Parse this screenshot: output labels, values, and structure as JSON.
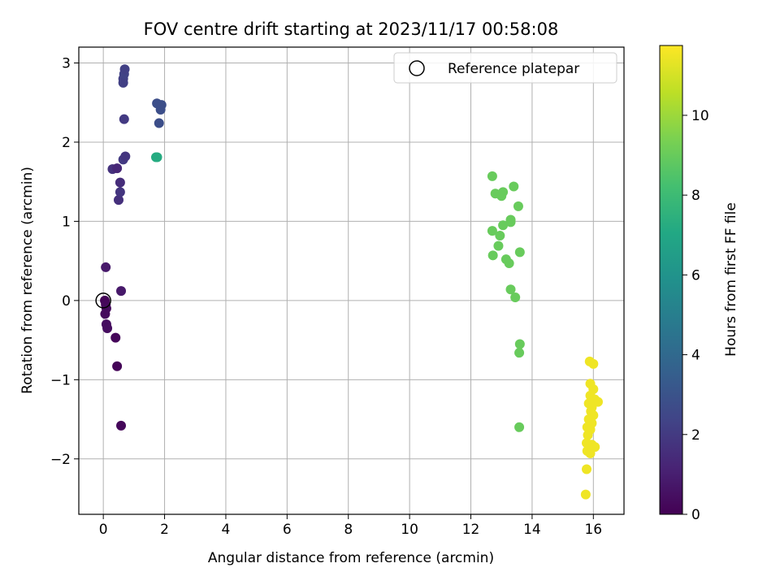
{
  "chart_data": {
    "type": "scatter",
    "title": "FOV centre drift starting at 2023/11/17 00:58:08",
    "xlabel": "Angular distance from reference (arcmin)",
    "ylabel": "Rotation from reference (arcmin)",
    "xlim": [
      -0.8,
      17
    ],
    "ylim": [
      -2.7,
      3.2
    ],
    "xticks": [
      0,
      2,
      4,
      6,
      8,
      10,
      12,
      14,
      16
    ],
    "yticks": [
      -2,
      -1,
      0,
      1,
      2,
      3
    ],
    "xtick_labels": [
      "0",
      "2",
      "4",
      "6",
      "8",
      "10",
      "12",
      "14",
      "16"
    ],
    "ytick_labels": [
      "−2",
      "−1",
      "0",
      "1",
      "2",
      "3"
    ],
    "grid": true,
    "legend": {
      "position": "top-right",
      "entries": [
        "Reference platepar"
      ]
    },
    "reference_point": {
      "x": 0,
      "y": 0,
      "style": "open-circle",
      "color": "#000000"
    },
    "colorbar": {
      "label": "Hours from first FF file",
      "colormap": "viridis",
      "range": [
        0,
        11.75
      ],
      "ticks": [
        0,
        2,
        4,
        6,
        8,
        10
      ],
      "tick_labels": [
        "0",
        "2",
        "4",
        "6",
        "8",
        "10"
      ]
    },
    "points": [
      {
        "x": 0.05,
        "y": 0.0,
        "c": 0.1
      },
      {
        "x": 0.08,
        "y": -0.05,
        "c": 0.2
      },
      {
        "x": 0.1,
        "y": -0.1,
        "c": 0.3
      },
      {
        "x": 0.06,
        "y": -0.17,
        "c": 0.3
      },
      {
        "x": 0.1,
        "y": -0.3,
        "c": 0.4
      },
      {
        "x": 0.13,
        "y": -0.35,
        "c": 0.4
      },
      {
        "x": 0.4,
        "y": -0.47,
        "c": 0.2
      },
      {
        "x": 0.45,
        "y": -0.83,
        "c": 0.1
      },
      {
        "x": 0.58,
        "y": -1.58,
        "c": 0.2
      },
      {
        "x": 0.08,
        "y": 0.42,
        "c": 0.8
      },
      {
        "x": 0.58,
        "y": 0.12,
        "c": 0.8
      },
      {
        "x": 0.5,
        "y": 1.27,
        "c": 1.6
      },
      {
        "x": 0.55,
        "y": 1.37,
        "c": 1.8
      },
      {
        "x": 0.55,
        "y": 1.49,
        "c": 1.5
      },
      {
        "x": 0.3,
        "y": 1.66,
        "c": 1.7
      },
      {
        "x": 0.45,
        "y": 1.67,
        "c": 1.3
      },
      {
        "x": 0.65,
        "y": 1.78,
        "c": 2.0
      },
      {
        "x": 0.72,
        "y": 1.82,
        "c": 1.8
      },
      {
        "x": 0.68,
        "y": 2.29,
        "c": 2.0
      },
      {
        "x": 0.65,
        "y": 2.75,
        "c": 2.2
      },
      {
        "x": 0.65,
        "y": 2.8,
        "c": 2.2
      },
      {
        "x": 0.68,
        "y": 2.86,
        "c": 2.3
      },
      {
        "x": 0.7,
        "y": 2.92,
        "c": 2.2
      },
      {
        "x": 1.75,
        "y": 2.49,
        "c": 2.8
      },
      {
        "x": 1.9,
        "y": 2.47,
        "c": 2.8
      },
      {
        "x": 1.87,
        "y": 2.41,
        "c": 2.8
      },
      {
        "x": 1.82,
        "y": 2.24,
        "c": 2.8
      },
      {
        "x": 1.72,
        "y": 1.81,
        "c": 7.2
      },
      {
        "x": 1.76,
        "y": 1.81,
        "c": 7.2
      },
      {
        "x": 12.7,
        "y": 1.57,
        "c": 9.0
      },
      {
        "x": 13.4,
        "y": 1.44,
        "c": 9.0
      },
      {
        "x": 12.8,
        "y": 1.35,
        "c": 9.0
      },
      {
        "x": 13.0,
        "y": 1.32,
        "c": 9.0
      },
      {
        "x": 13.05,
        "y": 1.37,
        "c": 9.0
      },
      {
        "x": 13.55,
        "y": 1.19,
        "c": 9.0
      },
      {
        "x": 13.3,
        "y": 1.02,
        "c": 9.0
      },
      {
        "x": 13.3,
        "y": 0.99,
        "c": 9.0
      },
      {
        "x": 13.05,
        "y": 0.95,
        "c": 9.0
      },
      {
        "x": 12.7,
        "y": 0.88,
        "c": 9.0
      },
      {
        "x": 12.95,
        "y": 0.82,
        "c": 9.0
      },
      {
        "x": 12.9,
        "y": 0.69,
        "c": 9.0
      },
      {
        "x": 13.6,
        "y": 0.61,
        "c": 9.0
      },
      {
        "x": 12.72,
        "y": 0.57,
        "c": 9.0
      },
      {
        "x": 13.15,
        "y": 0.52,
        "c": 9.0
      },
      {
        "x": 13.25,
        "y": 0.47,
        "c": 9.0
      },
      {
        "x": 13.3,
        "y": 0.14,
        "c": 9.0
      },
      {
        "x": 13.45,
        "y": 0.04,
        "c": 9.0
      },
      {
        "x": 13.6,
        "y": -0.55,
        "c": 9.0
      },
      {
        "x": 13.58,
        "y": -0.66,
        "c": 9.0
      },
      {
        "x": 13.58,
        "y": -1.6,
        "c": 9.0
      },
      {
        "x": 15.88,
        "y": -0.77,
        "c": 11.5
      },
      {
        "x": 16.0,
        "y": -0.8,
        "c": 11.5
      },
      {
        "x": 15.9,
        "y": -1.05,
        "c": 11.5
      },
      {
        "x": 16.0,
        "y": -1.12,
        "c": 11.5
      },
      {
        "x": 15.9,
        "y": -1.2,
        "c": 11.5
      },
      {
        "x": 16.05,
        "y": -1.25,
        "c": 11.5
      },
      {
        "x": 16.15,
        "y": -1.28,
        "c": 11.5
      },
      {
        "x": 15.85,
        "y": -1.3,
        "c": 11.5
      },
      {
        "x": 15.95,
        "y": -1.35,
        "c": 11.5
      },
      {
        "x": 15.92,
        "y": -1.4,
        "c": 11.5
      },
      {
        "x": 16.0,
        "y": -1.45,
        "c": 11.5
      },
      {
        "x": 15.85,
        "y": -1.5,
        "c": 11.5
      },
      {
        "x": 15.95,
        "y": -1.55,
        "c": 11.5
      },
      {
        "x": 15.8,
        "y": -1.6,
        "c": 11.5
      },
      {
        "x": 15.9,
        "y": -1.63,
        "c": 11.5
      },
      {
        "x": 15.82,
        "y": -1.7,
        "c": 11.5
      },
      {
        "x": 15.78,
        "y": -1.8,
        "c": 11.5
      },
      {
        "x": 15.95,
        "y": -1.82,
        "c": 11.5
      },
      {
        "x": 16.05,
        "y": -1.85,
        "c": 11.5
      },
      {
        "x": 15.8,
        "y": -1.9,
        "c": 11.5
      },
      {
        "x": 15.9,
        "y": -1.93,
        "c": 11.5
      },
      {
        "x": 15.78,
        "y": -2.13,
        "c": 11.5
      },
      {
        "x": 15.75,
        "y": -2.45,
        "c": 11.5
      }
    ]
  }
}
